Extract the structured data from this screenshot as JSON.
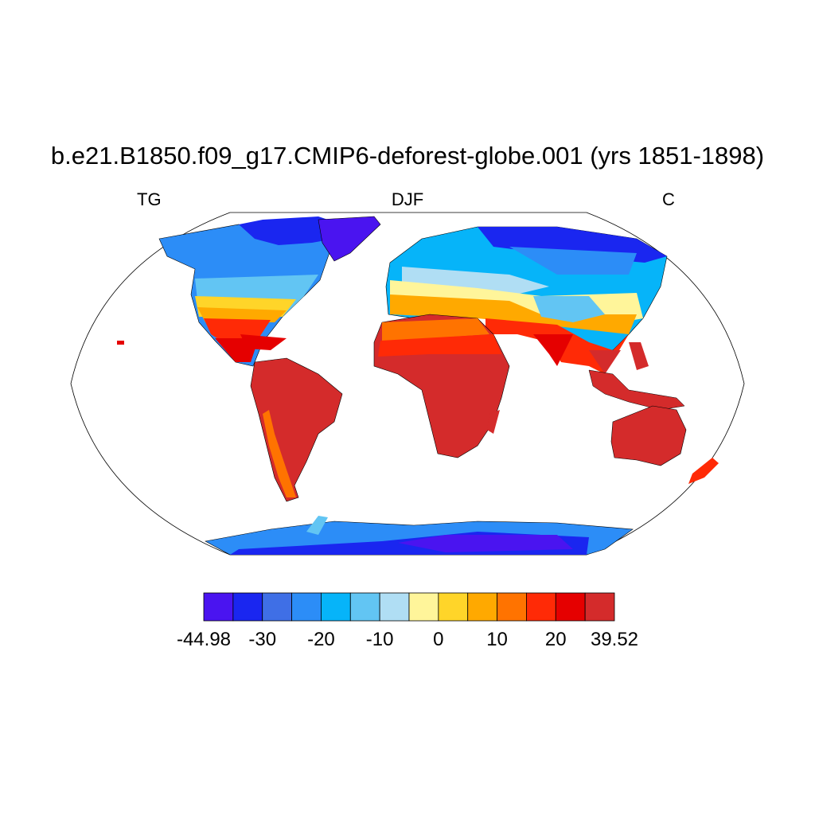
{
  "title": "b.e21.B1850.f09_g17.CMIP6-deforest-globe.001 (yrs 1851-1898)",
  "left_label": "TG",
  "center_label": "DJF",
  "right_label": "C",
  "colorbar": {
    "colors": [
      "#4a14f0",
      "#1a26f0",
      "#3f6fe6",
      "#2c8df7",
      "#06b4f9",
      "#62c5f3",
      "#b0def4",
      "#fff59a",
      "#ffd529",
      "#ffa900",
      "#ff7300",
      "#ff2a06",
      "#e50000",
      "#d42b2b"
    ],
    "tick_labels": [
      "-44.98",
      "-30",
      "-20",
      "-10",
      "0",
      "10",
      "20",
      "39.52"
    ]
  },
  "map": {
    "projection": "Robinson",
    "ocean_color": "#ffffff",
    "coastline_color": "#000000"
  }
}
